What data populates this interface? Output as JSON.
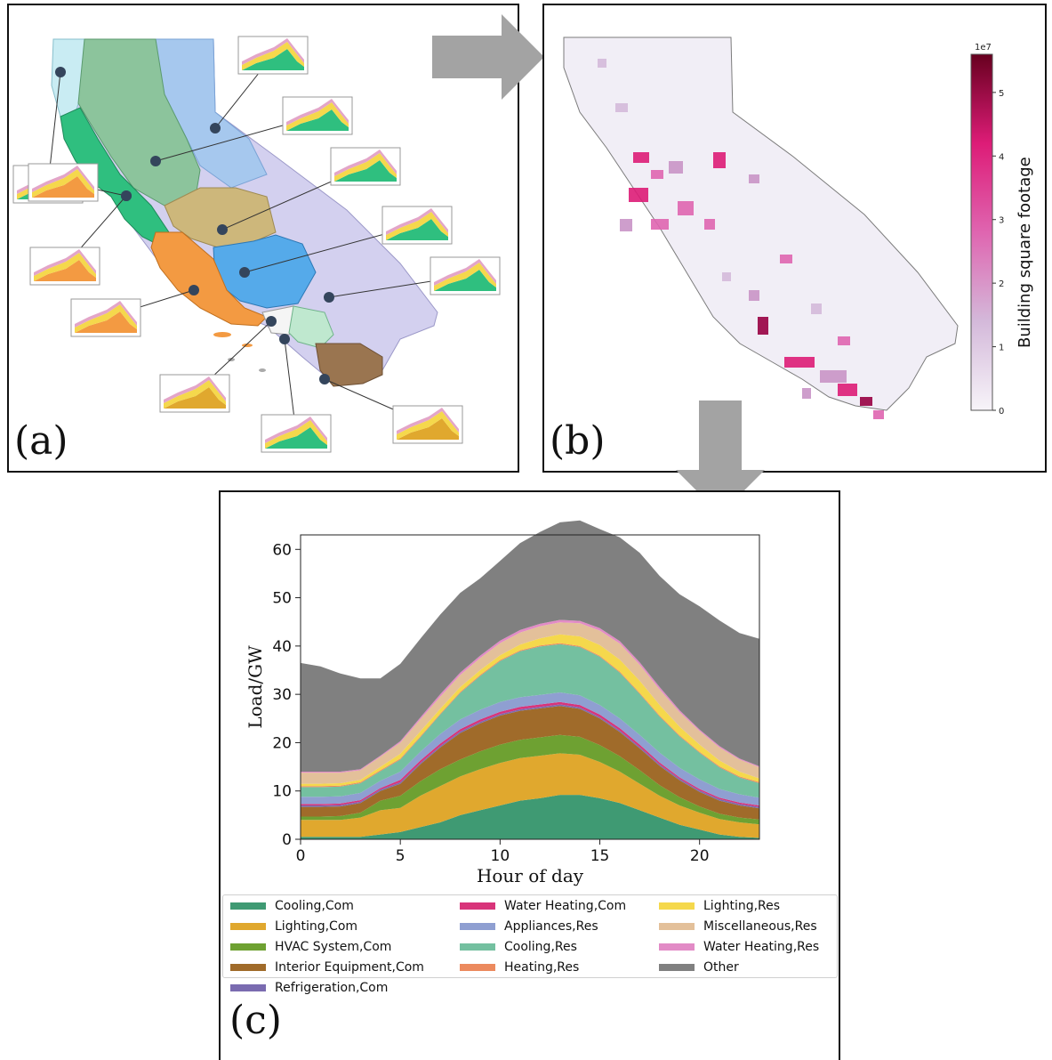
{
  "panels": {
    "a": {
      "label": "(a)"
    },
    "b": {
      "label": "(b)",
      "colorbar": {
        "label": "Building square footage",
        "exponent": "1e7",
        "ticks": [
          "0",
          "1",
          "2",
          "3",
          "4",
          "5"
        ]
      }
    },
    "c": {
      "label": "(c)"
    }
  },
  "colors": {
    "Cooling,Com": "#3f9a73",
    "Lighting,Com": "#e0a82e",
    "HVAC System,Com": "#6ea132",
    "Interior Equipment,Com": "#a06b2a",
    "Refrigeration,Com": "#7a6bb0",
    "Water Heating,Com": "#d8347a",
    "Appliances,Res": "#8f9fd1",
    "Cooling,Res": "#74c0a0",
    "Heating,Res": "#ec8a5e",
    "Lighting,Res": "#f5d84c",
    "Miscellaneous,Res": "#e3c09a",
    "Water Heating,Res": "#e28bc6",
    "Other": "#808080"
  },
  "chart_data": {
    "type": "area",
    "xlabel": "Hour of day",
    "ylabel": "Load/GW",
    "xlim": [
      0,
      23
    ],
    "ylim": [
      0,
      63
    ],
    "xticks": [
      0,
      5,
      10,
      15,
      20
    ],
    "yticks": [
      0,
      10,
      20,
      30,
      40,
      50,
      60
    ],
    "legend_position": "below",
    "x": [
      0,
      1,
      2,
      3,
      4,
      5,
      6,
      7,
      8,
      9,
      10,
      11,
      12,
      13,
      14,
      15,
      16,
      17,
      18,
      19,
      20,
      21,
      22,
      23
    ],
    "series": [
      {
        "name": "Cooling,Com",
        "values": [
          0.5,
          0.5,
          0.5,
          0.5,
          1,
          1.5,
          2.5,
          3.5,
          5,
          6,
          7,
          8,
          8.5,
          9.2,
          9.2,
          8.5,
          7.5,
          6,
          4.5,
          3,
          2,
          1,
          0.5,
          0.3
        ]
      },
      {
        "name": "Lighting,Com",
        "values": [
          3.5,
          3.5,
          3.5,
          4,
          5,
          5,
          6.5,
          7.5,
          8,
          8.5,
          8.8,
          8.8,
          8.8,
          8.6,
          8.3,
          7.5,
          6.5,
          5.5,
          4.5,
          4,
          3.5,
          3.2,
          3,
          2.8
        ]
      },
      {
        "name": "HVAC System,Com",
        "values": [
          0.7,
          0.7,
          0.8,
          1,
          2,
          2.5,
          3,
          3.5,
          3.5,
          3.7,
          3.8,
          3.8,
          3.8,
          3.8,
          3.7,
          3.5,
          3.2,
          2.8,
          2.2,
          1.7,
          1.3,
          1.1,
          1,
          1
        ]
      },
      {
        "name": "Interior Equipment,Com",
        "values": [
          2,
          2,
          2,
          2,
          2,
          2.5,
          3.5,
          4.5,
          5.5,
          5.8,
          6,
          6,
          6,
          6,
          5.8,
          5.5,
          5,
          4.5,
          4,
          3.5,
          3,
          2.7,
          2.5,
          2.3
        ]
      },
      {
        "name": "Refrigeration,Com",
        "values": [
          0.3,
          0.3,
          0.3,
          0.3,
          0.3,
          0.3,
          0.3,
          0.3,
          0.3,
          0.3,
          0.3,
          0.3,
          0.3,
          0.3,
          0.3,
          0.3,
          0.3,
          0.3,
          0.3,
          0.3,
          0.3,
          0.3,
          0.3,
          0.3
        ]
      },
      {
        "name": "Water Heating,Com",
        "values": [
          0.3,
          0.3,
          0.3,
          0.3,
          0.3,
          0.5,
          0.5,
          0.5,
          0.5,
          0.5,
          0.5,
          0.5,
          0.5,
          0.5,
          0.5,
          0.5,
          0.5,
          0.5,
          0.4,
          0.3,
          0.3,
          0.3,
          0.3,
          0.3
        ]
      },
      {
        "name": "Appliances,Res",
        "values": [
          1.5,
          1.5,
          1.5,
          1.5,
          1.5,
          1.7,
          1.8,
          2,
          2,
          2,
          2,
          2,
          2,
          2,
          2,
          2,
          2,
          2,
          2,
          2,
          2,
          1.8,
          1.7,
          1.6
        ]
      },
      {
        "name": "Cooling,Res",
        "values": [
          2,
          2,
          2,
          2,
          2,
          2.5,
          3,
          4,
          5.5,
          7,
          8.5,
          9.5,
          10,
          10,
          10,
          10,
          9.5,
          8.5,
          7.5,
          6.5,
          5.5,
          4.5,
          3.5,
          3
        ]
      },
      {
        "name": "Heating,Res",
        "values": [
          0.2,
          0.2,
          0.2,
          0.2,
          0.2,
          0.2,
          0.2,
          0.2,
          0.2,
          0.2,
          0.2,
          0.2,
          0.2,
          0.2,
          0.2,
          0.2,
          0.2,
          0.2,
          0.2,
          0.2,
          0.2,
          0.2,
          0.2,
          0.2
        ]
      },
      {
        "name": "Lighting,Res",
        "values": [
          0.5,
          0.5,
          0.5,
          0.5,
          0.7,
          1,
          1,
          1,
          1,
          1,
          1,
          1.2,
          1.5,
          1.8,
          2,
          2.2,
          2.5,
          2.5,
          2.2,
          1.8,
          1.5,
          1.2,
          1,
          0.8
        ]
      },
      {
        "name": "Miscellaneous,Res",
        "values": [
          2.3,
          2.3,
          2.2,
          2,
          2.1,
          2.3,
          2.5,
          2.5,
          2.5,
          2.5,
          2.5,
          2.5,
          2.5,
          2.5,
          2.7,
          3,
          3.3,
          3.3,
          3.2,
          3,
          2.8,
          2.7,
          2.5,
          2.3
        ]
      },
      {
        "name": "Water Heating,Res",
        "values": [
          0.2,
          0.2,
          0.2,
          0.2,
          0.2,
          0.3,
          0.4,
          0.5,
          0.5,
          0.5,
          0.5,
          0.5,
          0.5,
          0.5,
          0.5,
          0.5,
          0.5,
          0.5,
          0.5,
          0.4,
          0.3,
          0.3,
          0.2,
          0.2
        ]
      },
      {
        "name": "Other",
        "values": [
          22.5,
          21.8,
          20.3,
          18.8,
          16,
          16,
          16.3,
          16.5,
          16.5,
          16,
          16.5,
          18,
          19,
          20.2,
          20.8,
          20.5,
          21.5,
          22.7,
          23,
          24,
          25.5,
          26,
          26,
          26.4
        ]
      }
    ]
  }
}
